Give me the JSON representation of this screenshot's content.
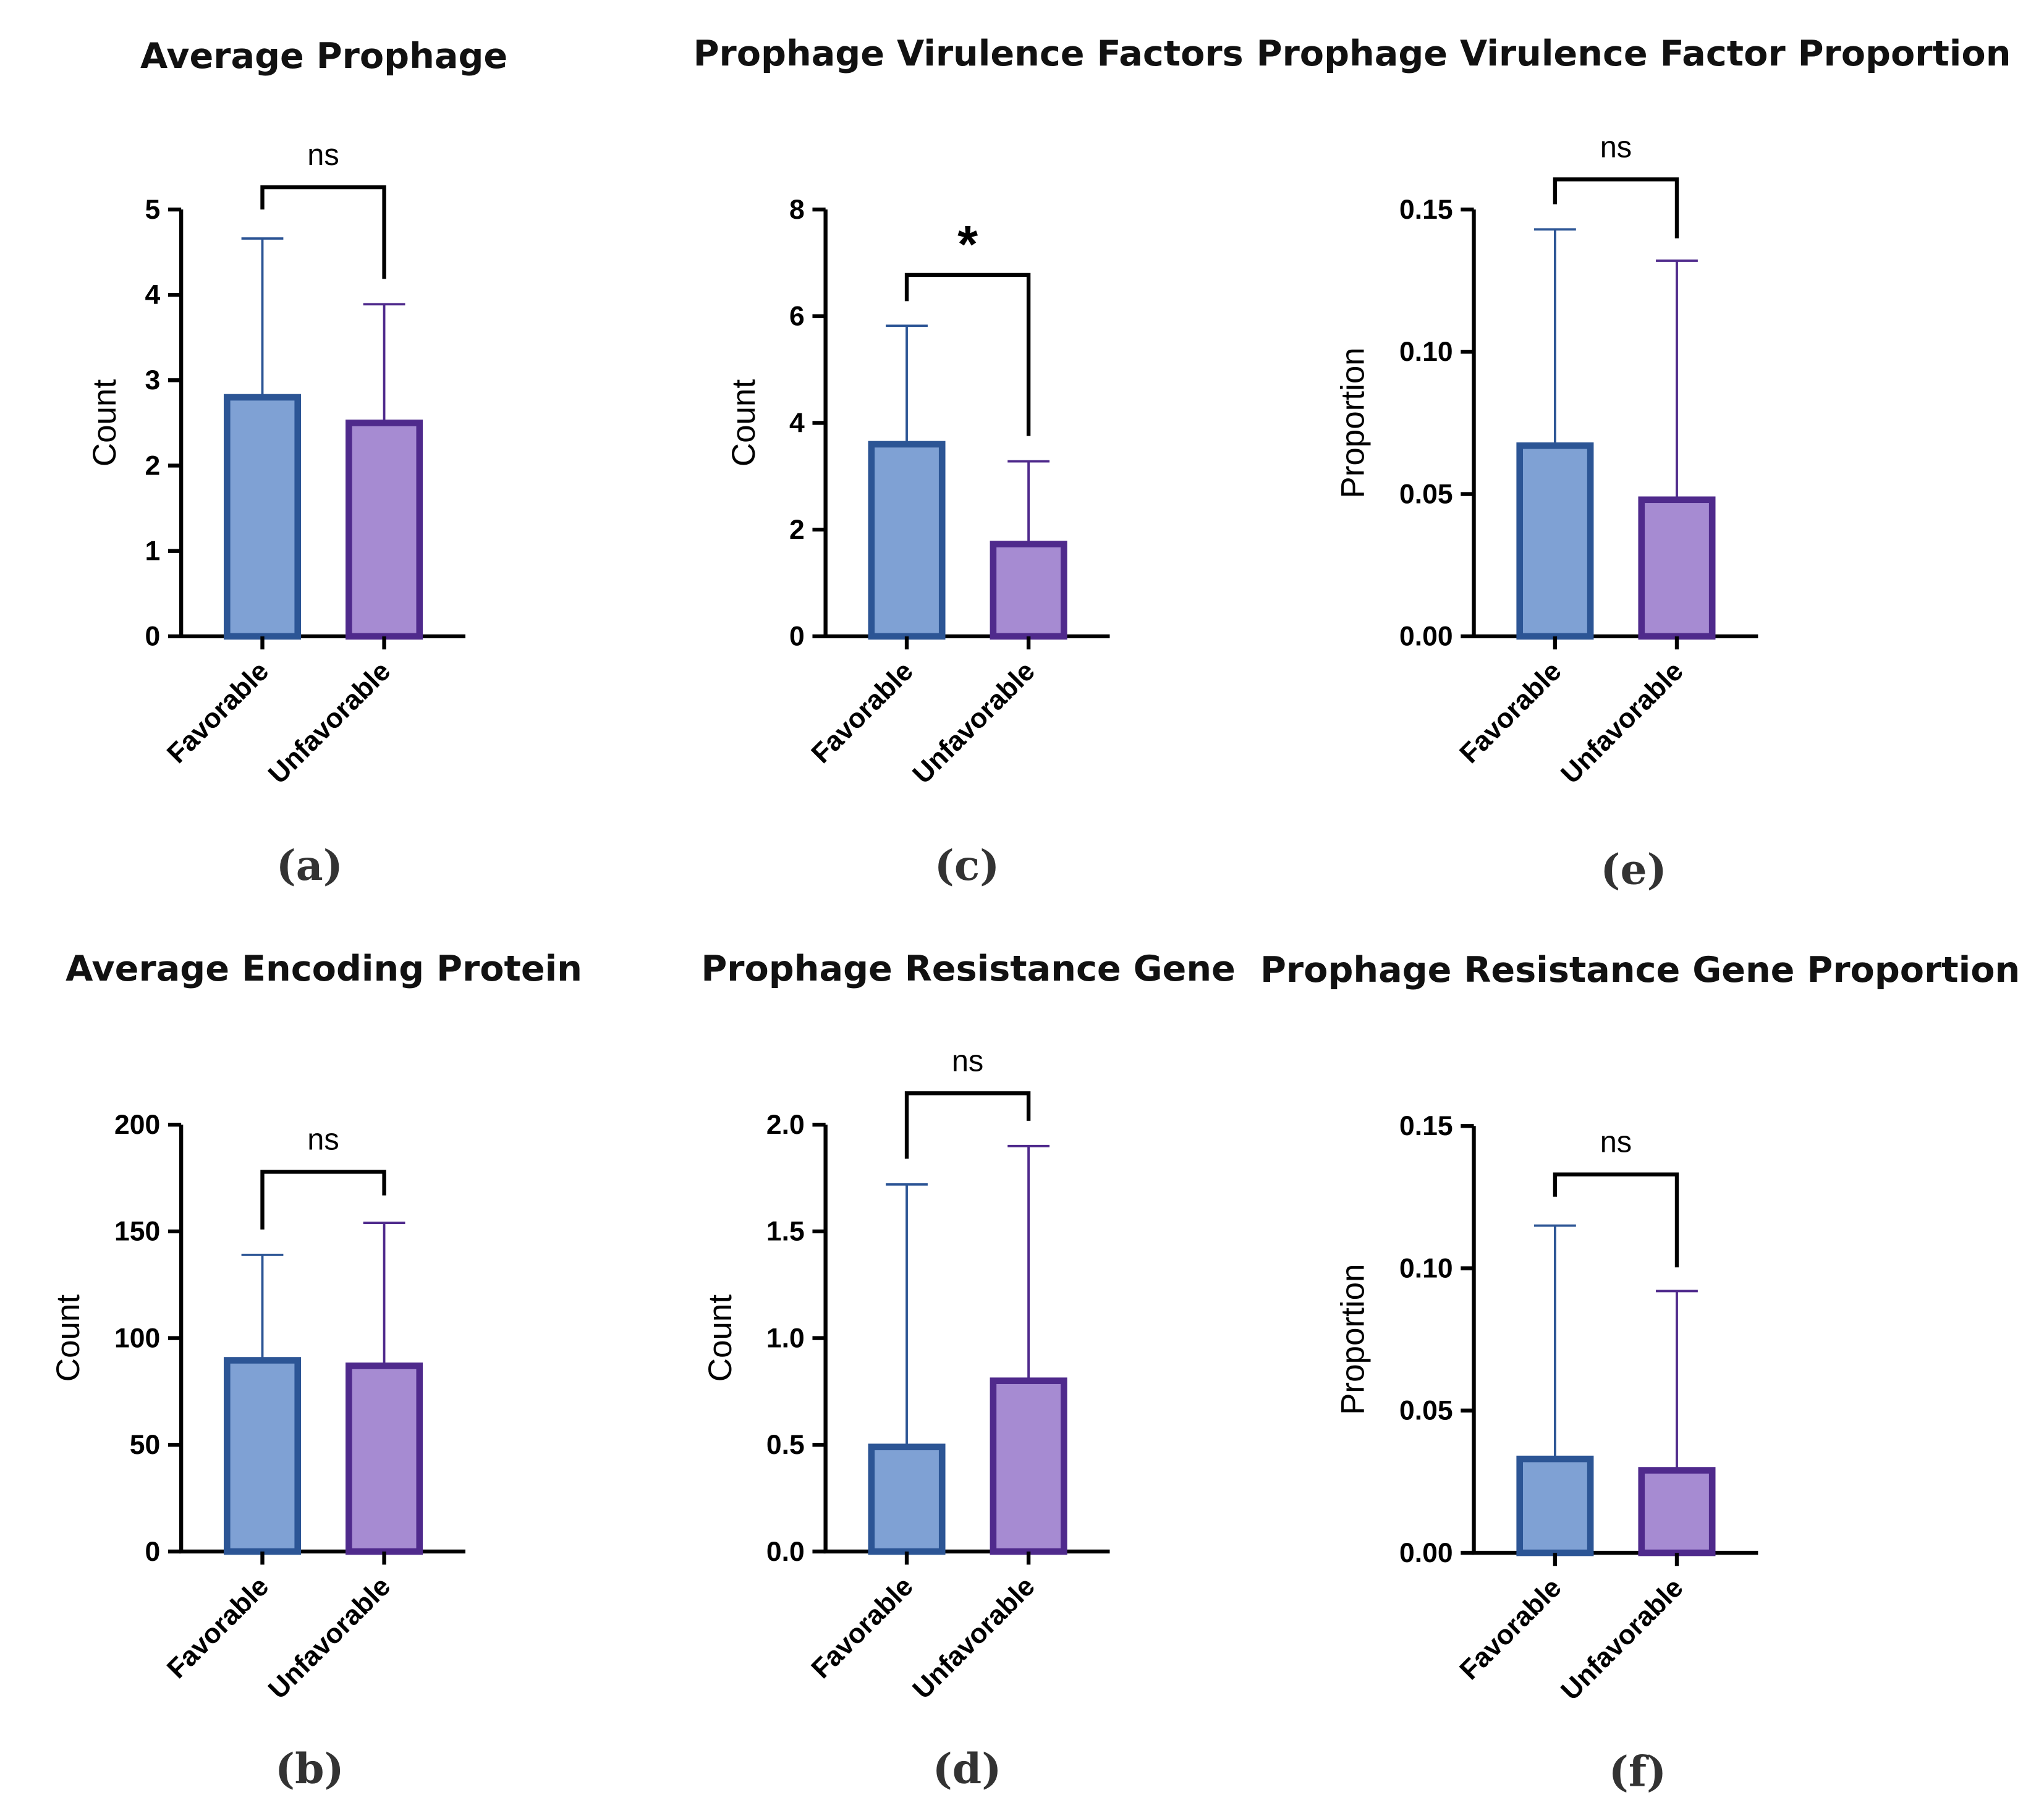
{
  "colors": {
    "favorable_fill": "#7fa1d4",
    "favorable_edge": "#2c5595",
    "unfavorable_fill": "#a68bd2",
    "unfavorable_edge": "#4f2a8c"
  },
  "chart_data": [
    {
      "type": "bar",
      "panel": "(a)",
      "title": "Average Prophage",
      "ylabel": "Count",
      "categories": [
        "Favorable",
        "Unfavorable"
      ],
      "values": [
        2.8,
        2.5
      ],
      "error_upper": [
        4.66,
        3.89
      ],
      "ylim": [
        0,
        5
      ],
      "yticks": [
        "0",
        "1",
        "2",
        "3",
        "4",
        "5"
      ],
      "significance": "ns"
    },
    {
      "type": "bar",
      "panel": "(c)",
      "title": "Prophage Virulence Factors",
      "ylabel": "Count",
      "categories": [
        "Favorable",
        "Unfavorable"
      ],
      "values": [
        3.6,
        1.73
      ],
      "error_upper": [
        5.82,
        3.28
      ],
      "ylim": [
        0,
        8
      ],
      "yticks": [
        "0",
        "2",
        "4",
        "6",
        "8"
      ],
      "significance": "*"
    },
    {
      "type": "bar",
      "panel": "(e)",
      "title": "Prophage Virulence Factor Proportion",
      "ylabel": "Proportion",
      "categories": [
        "Favorable",
        "Unfavorable"
      ],
      "values": [
        0.067,
        0.048
      ],
      "error_upper": [
        0.143,
        0.132
      ],
      "ylim": [
        0,
        0.15
      ],
      "yticks": [
        "0.00",
        "0.05",
        "0.10",
        "0.15"
      ],
      "significance": "ns"
    },
    {
      "type": "bar",
      "panel": "(b)",
      "title": "Average Encoding Protein",
      "ylabel": "Count",
      "categories": [
        "Favorable",
        "Unfavorable"
      ],
      "values": [
        89.6,
        87
      ],
      "error_upper": [
        139,
        154
      ],
      "ylim": [
        0,
        200
      ],
      "yticks": [
        "0",
        "50",
        "100",
        "150",
        "200"
      ],
      "significance": "ns"
    },
    {
      "type": "bar",
      "panel": "(d)",
      "title": "Prophage Resistance Gene",
      "ylabel": "Count",
      "categories": [
        "Favorable",
        "Unfavorable"
      ],
      "values": [
        0.49,
        0.8
      ],
      "error_upper": [
        1.72,
        1.9
      ],
      "ylim": [
        0,
        2
      ],
      "yticks": [
        "0.0",
        "0.5",
        "1.0",
        "1.5",
        "2.0"
      ],
      "significance": "ns"
    },
    {
      "type": "bar",
      "panel": "(f)",
      "title": "Prophage Resistance Gene Proportion",
      "ylabel": "Proportion",
      "categories": [
        "Favorable",
        "Unfavorable"
      ],
      "values": [
        0.033,
        0.029
      ],
      "error_upper": [
        0.115,
        0.092
      ],
      "ylim": [
        0,
        0.15
      ],
      "yticks": [
        "0.00",
        "0.05",
        "0.10",
        "0.15"
      ],
      "significance": "ns"
    }
  ]
}
